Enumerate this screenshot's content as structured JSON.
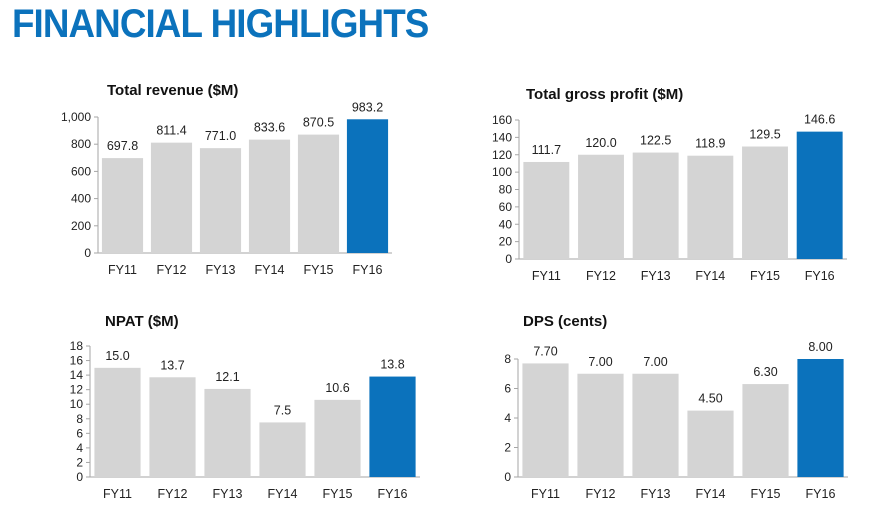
{
  "header": {
    "title": "FINANCIAL HIGHLIGHTS"
  },
  "colors": {
    "title": "#0b72bc",
    "bar": "#d4d4d4",
    "highlight": "#0b72bc",
    "axis": "#a6a6a6",
    "text": "#222222"
  },
  "chart_data": [
    {
      "type": "bar",
      "title": "Total revenue ($M)",
      "categories": [
        "FY11",
        "FY12",
        "FY13",
        "FY14",
        "FY15",
        "FY16"
      ],
      "values": [
        697.8,
        811.4,
        771.0,
        833.6,
        870.5,
        983.2
      ],
      "labels": [
        "697.8",
        "811.4",
        "771.0",
        "833.6",
        "870.5",
        "983.2"
      ],
      "ylim": [
        0,
        1000
      ],
      "yticks": [
        "0",
        "200",
        "400",
        "600",
        "800",
        "1,000"
      ],
      "highlight_index": 5,
      "grid": false
    },
    {
      "type": "bar",
      "title": "Total gross profit ($M)",
      "categories": [
        "FY11",
        "FY12",
        "FY13",
        "FY14",
        "FY15",
        "FY16"
      ],
      "values": [
        111.7,
        120.0,
        122.5,
        118.9,
        129.5,
        146.6
      ],
      "labels": [
        "111.7",
        "120.0",
        "122.5",
        "118.9",
        "129.5",
        "146.6"
      ],
      "ylim": [
        0,
        160
      ],
      "yticks": [
        "0",
        "20",
        "40",
        "60",
        "80",
        "100",
        "120",
        "140",
        "160"
      ],
      "highlight_index": 5,
      "grid": false
    },
    {
      "type": "bar",
      "title": "NPAT ($M)",
      "categories": [
        "FY11",
        "FY12",
        "FY13",
        "FY14",
        "FY15",
        "FY16"
      ],
      "values": [
        15.0,
        13.7,
        12.1,
        7.5,
        10.6,
        13.8
      ],
      "labels": [
        "15.0",
        "13.7",
        "12.1",
        "7.5",
        "10.6",
        "13.8"
      ],
      "ylim": [
        0,
        18
      ],
      "yticks": [
        "0",
        "2",
        "4",
        "6",
        "8",
        "10",
        "12",
        "14",
        "16",
        "18"
      ],
      "highlight_index": 5,
      "grid": false
    },
    {
      "type": "bar",
      "title": "DPS (cents)",
      "categories": [
        "FY11",
        "FY12",
        "FY13",
        "FY14",
        "FY15",
        "FY16"
      ],
      "values": [
        7.7,
        7.0,
        7.0,
        4.5,
        6.3,
        8.0
      ],
      "labels": [
        "7.70",
        "7.00",
        "7.00",
        "4.50",
        "6.30",
        "8.00"
      ],
      "ylim": [
        0,
        8
      ],
      "yticks": [
        "0",
        "2",
        "4",
        "6",
        "8"
      ],
      "highlight_index": 5,
      "grid": false
    }
  ]
}
